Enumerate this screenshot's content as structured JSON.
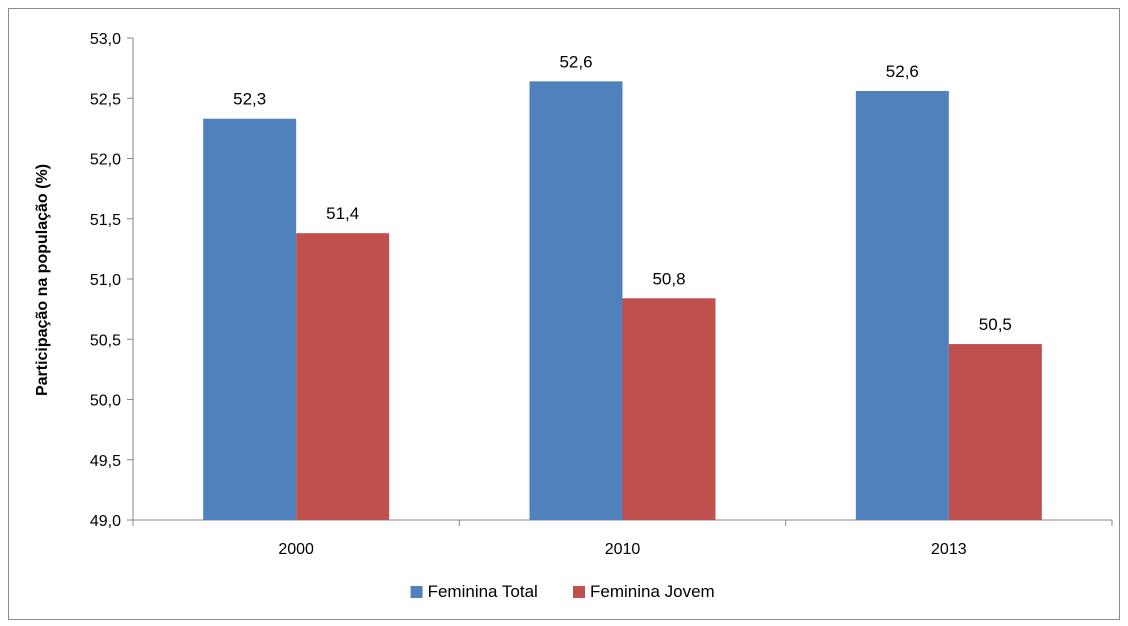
{
  "chart_data": {
    "type": "bar",
    "title": "",
    "xlabel": "",
    "ylabel": "Participação  na população  (%)",
    "categories": [
      "2000",
      "2010",
      "2013"
    ],
    "series": [
      {
        "name": "Feminina Total",
        "values": [
          52.33,
          52.64,
          52.56
        ],
        "labels": [
          "52,3",
          "52,6",
          "52,6"
        ],
        "color": "#4F81BD"
      },
      {
        "name": "Feminina Jovem",
        "values": [
          51.38,
          50.84,
          50.46
        ],
        "labels": [
          "51,4",
          "50,8",
          "50,5"
        ],
        "color": "#C0504D"
      }
    ],
    "ylim": [
      49.0,
      53.0
    ],
    "yticks": [
      "49,0",
      "49,5",
      "50,0",
      "50,5",
      "51,0",
      "51,5",
      "52,0",
      "52,5",
      "53,0"
    ],
    "grid": false,
    "legend_position": "bottom"
  }
}
